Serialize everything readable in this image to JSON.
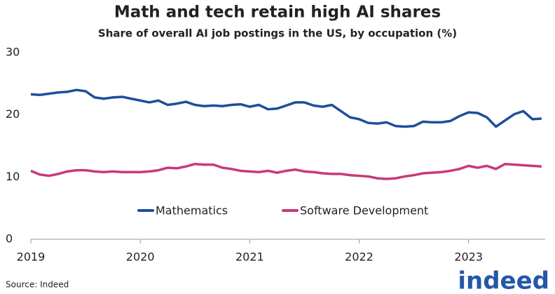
{
  "chart_data": {
    "type": "line",
    "title": "Math and tech retain high AI shares",
    "subtitle": "Share of overall AI job postings in the US, by occupation (%)",
    "source": "Source: Indeed",
    "logo": "indeed",
    "x": [
      2019.0,
      2019.083,
      2019.167,
      2019.25,
      2019.333,
      2019.417,
      2019.5,
      2019.583,
      2019.667,
      2019.75,
      2019.833,
      2019.917,
      2020.0,
      2020.083,
      2020.167,
      2020.25,
      2020.333,
      2020.417,
      2020.5,
      2020.583,
      2020.667,
      2020.75,
      2020.833,
      2020.917,
      2021.0,
      2021.083,
      2021.167,
      2021.25,
      2021.333,
      2021.417,
      2021.5,
      2021.583,
      2021.667,
      2021.75,
      2021.833,
      2021.917,
      2022.0,
      2022.083,
      2022.167,
      2022.25,
      2022.333,
      2022.417,
      2022.5,
      2022.583,
      2022.667,
      2022.75,
      2022.833,
      2022.917,
      2023.0,
      2023.083,
      2023.167,
      2023.25,
      2023.333,
      2023.417,
      2023.5,
      2023.583,
      2023.667
    ],
    "series": [
      {
        "name": "Mathematics",
        "color": "#1f4e99",
        "values": [
          23.3,
          23.2,
          23.4,
          23.6,
          23.7,
          24.0,
          23.8,
          22.8,
          22.6,
          22.8,
          22.9,
          22.6,
          22.3,
          22.0,
          22.3,
          21.6,
          21.8,
          22.1,
          21.6,
          21.4,
          21.5,
          21.4,
          21.6,
          21.7,
          21.3,
          21.6,
          20.9,
          21.0,
          21.5,
          22.0,
          22.0,
          21.5,
          21.3,
          21.6,
          20.6,
          19.6,
          19.3,
          18.7,
          18.6,
          18.8,
          18.2,
          18.1,
          18.2,
          18.9,
          18.8,
          18.8,
          19.0,
          19.8,
          20.4,
          20.3,
          19.6,
          18.1,
          19.1,
          20.1,
          20.6,
          19.3,
          19.4
        ]
      },
      {
        "name": "Software Development",
        "color": "#c8397a",
        "values": [
          11.0,
          10.4,
          10.2,
          10.5,
          10.9,
          11.1,
          11.1,
          10.9,
          10.8,
          10.9,
          10.8,
          10.8,
          10.8,
          10.9,
          11.1,
          11.5,
          11.4,
          11.7,
          12.1,
          12.0,
          12.0,
          11.5,
          11.3,
          11.0,
          10.9,
          10.8,
          11.0,
          10.7,
          11.0,
          11.2,
          10.9,
          10.8,
          10.6,
          10.5,
          10.5,
          10.3,
          10.2,
          10.1,
          9.8,
          9.7,
          9.8,
          10.1,
          10.3,
          10.6,
          10.7,
          10.8,
          11.0,
          11.3,
          11.8,
          11.5,
          11.8,
          11.3,
          12.1,
          12.0,
          11.9,
          11.8,
          11.7
        ]
      }
    ],
    "xlim": [
      2019,
      2023.7
    ],
    "xticks": [
      2019,
      2020,
      2021,
      2022,
      2023
    ],
    "ylim": [
      0,
      30
    ],
    "yticks": [
      0,
      10,
      20,
      30
    ],
    "grid": false,
    "legend": "center"
  }
}
